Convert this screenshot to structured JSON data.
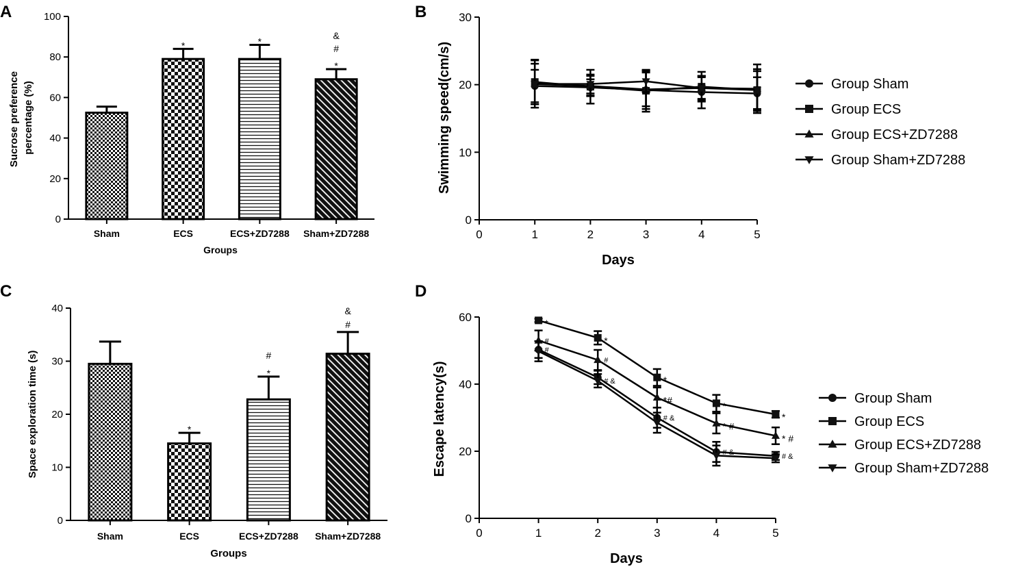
{
  "chart_data": [
    {
      "panel": "A",
      "type": "bar",
      "categories": [
        "Sham",
        "ECS",
        "ECS+ZD7288",
        "Sham+ZD7288"
      ],
      "values": [
        52.5,
        79,
        79,
        69
      ],
      "errors": [
        3,
        5,
        7,
        5
      ],
      "patterns": [
        "checker-fine",
        "checker-coarse",
        "hlines",
        "diag"
      ],
      "annotations": [
        [],
        [
          "*"
        ],
        [
          "*"
        ],
        [
          "*",
          "#",
          "&"
        ]
      ],
      "ylabel_lines": [
        "Sucrose preference",
        "percentage (%)"
      ],
      "xlabel": "Groups",
      "ylim": [
        0,
        100
      ],
      "yticks": [
        0,
        20,
        40,
        60,
        80,
        100
      ]
    },
    {
      "panel": "B",
      "type": "line",
      "x": [
        1,
        2,
        3,
        4,
        5
      ],
      "series": [
        {
          "name": "Group Sham",
          "marker": "circle",
          "values": [
            19.8,
            19.6,
            19.2,
            18.9,
            18.7
          ],
          "errors": [
            2.4,
            1.2,
            2.8,
            2.4,
            2.4
          ]
        },
        {
          "name": "Group ECS",
          "marker": "square",
          "values": [
            20.4,
            19.7,
            19.1,
            19.7,
            19.2
          ],
          "errors": [
            3.3,
            2.5,
            3.1,
            2.2,
            3.1
          ]
        },
        {
          "name": "Group ECS+ZD7288",
          "marker": "triangle-up",
          "values": [
            20.1,
            19.8,
            19.3,
            19.5,
            19.4
          ],
          "errors": [
            3.5,
            1.5,
            2.5,
            1.8,
            3.6
          ]
        },
        {
          "name": "Group Sham+ZD7288",
          "marker": "triangle-down",
          "values": [
            20.1,
            20.1,
            20.5,
            19.5,
            19.2
          ],
          "errors": [
            3.0,
            1.4,
            1.6,
            1.6,
            2.8
          ]
        }
      ],
      "ylabel": "Swimming speed(cm/s)",
      "xlabel": "Days",
      "xlim": [
        0,
        5
      ],
      "ylim": [
        0,
        30
      ],
      "xticks": [
        0,
        1,
        2,
        3,
        4,
        5
      ],
      "yticks": [
        0,
        10,
        20,
        30
      ]
    },
    {
      "panel": "C",
      "type": "bar",
      "categories": [
        "Sham",
        "ECS",
        "ECS+ZD7288",
        "Sham+ZD7288"
      ],
      "values": [
        29.5,
        14.5,
        22.8,
        31.4
      ],
      "errors": [
        4.2,
        2,
        4.3,
        4.1
      ],
      "patterns": [
        "checker-fine",
        "checker-coarse",
        "hlines",
        "diag"
      ],
      "annotations": [
        [],
        [
          "*"
        ],
        [
          "*",
          "#"
        ],
        [
          "#",
          "&"
        ]
      ],
      "ylabel": "Space exploration time (s)",
      "xlabel": "Groups",
      "ylim": [
        0,
        40
      ],
      "yticks": [
        0,
        10,
        20,
        30,
        40
      ]
    },
    {
      "panel": "D",
      "type": "line",
      "x": [
        1,
        2,
        3,
        4,
        5
      ],
      "series": [
        {
          "name": "Group Sham",
          "marker": "circle",
          "values": [
            50.3,
            42,
            30,
            19.8,
            18.6
          ],
          "errors": [
            2.5,
            2,
            3,
            3,
            1.2
          ],
          "labels": [
            "#",
            "",
            "# &",
            "# &",
            "# &"
          ]
        },
        {
          "name": "Group ECS",
          "marker": "square",
          "values": [
            59,
            53.8,
            42,
            34.3,
            31
          ],
          "errors": [
            0.5,
            2,
            2.5,
            2.5,
            1
          ],
          "labels": [
            "*",
            "*",
            "*",
            "*",
            "*"
          ]
        },
        {
          "name": "Group ECS+ZD7288",
          "marker": "triangle-up",
          "values": [
            53,
            47.2,
            36,
            28.3,
            24.6
          ],
          "errors": [
            3,
            3,
            3,
            3,
            2.5
          ],
          "labels": [
            "#",
            "#",
            "*#",
            "* #",
            "* #"
          ]
        },
        {
          "name": "Group Sham+ZD7288",
          "marker": "triangle-down",
          "values": [
            49.8,
            41,
            28.5,
            18.7,
            17.9
          ],
          "errors": [
            3,
            2,
            3,
            3,
            1.2
          ],
          "labels": [
            "",
            "# &",
            "",
            "",
            ""
          ]
        }
      ],
      "ylabel": "Escape latency(s)",
      "xlabel": "Days",
      "xlim": [
        0,
        5
      ],
      "ylim": [
        0,
        60
      ],
      "xticks": [
        0,
        1,
        2,
        3,
        4,
        5
      ],
      "yticks": [
        0,
        20,
        40,
        60
      ]
    }
  ]
}
